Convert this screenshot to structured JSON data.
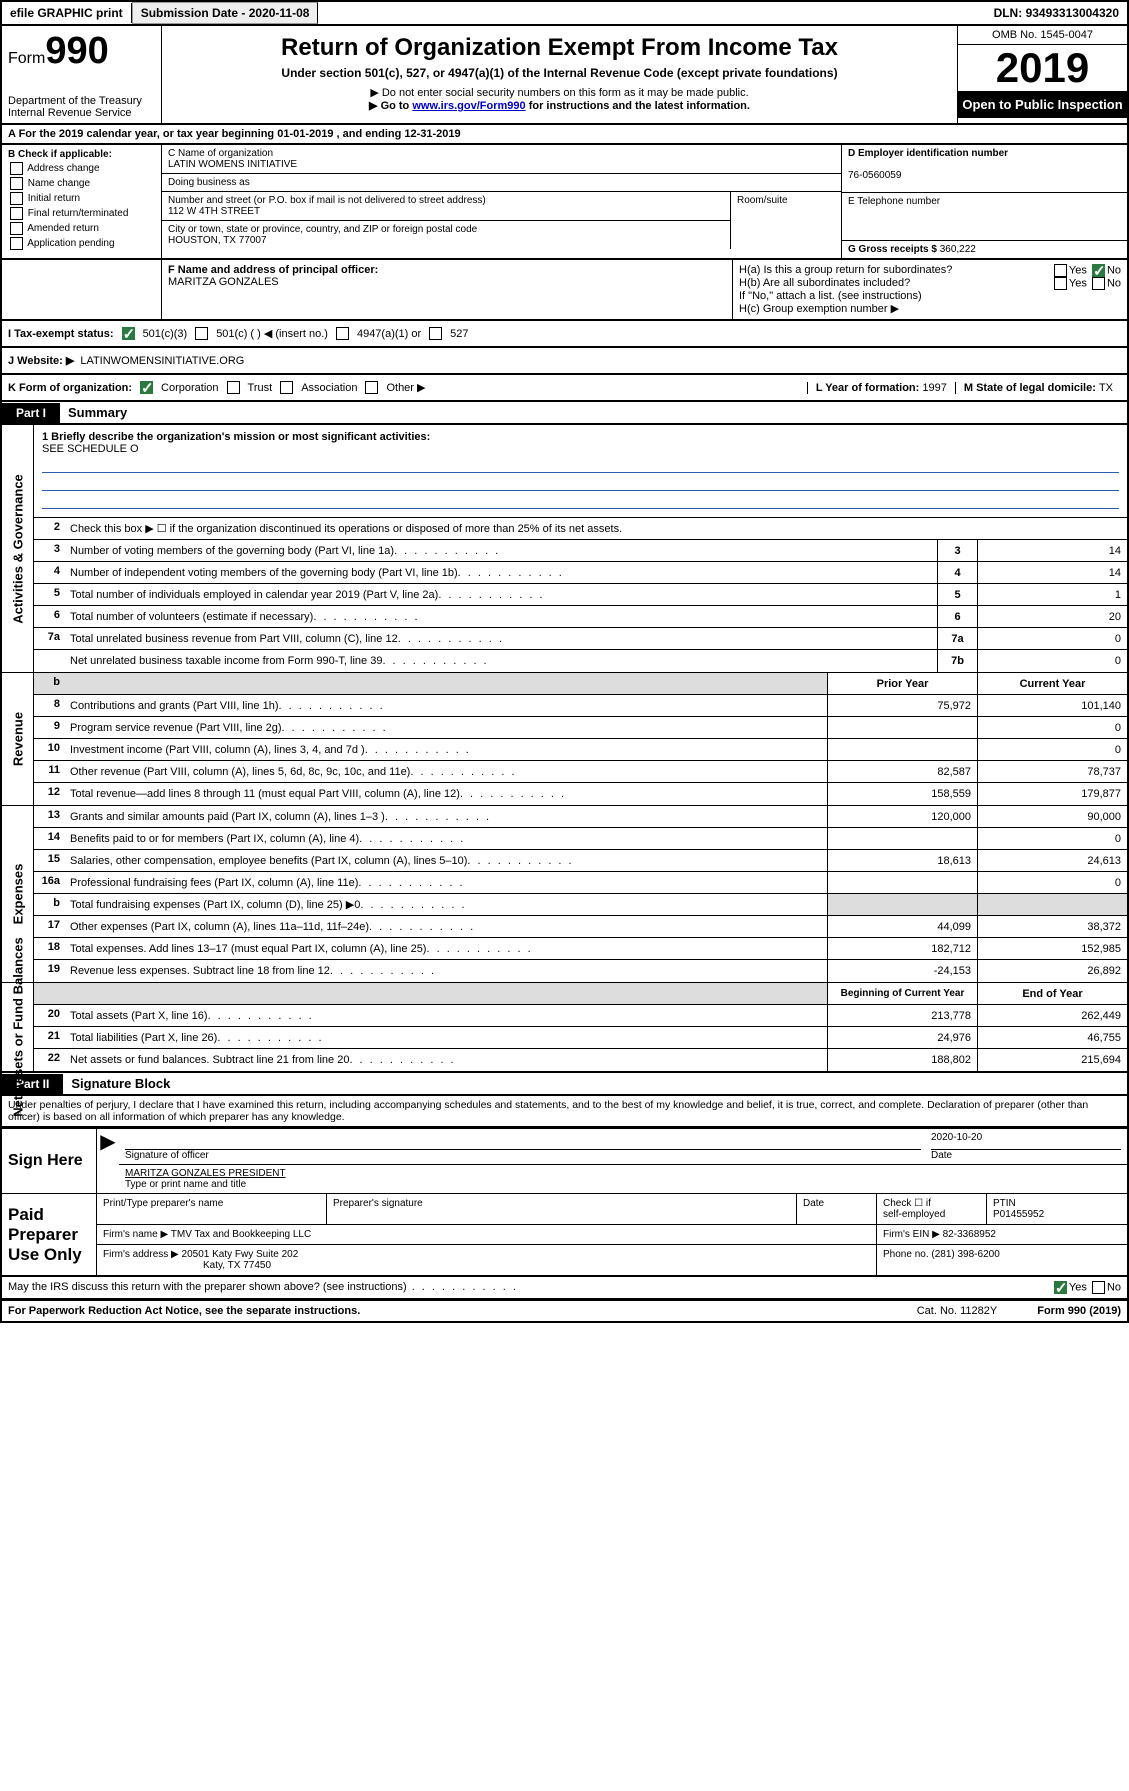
{
  "topbar": {
    "efile": "efile GRAPHIC print",
    "submission_label": "Submission Date - ",
    "submission_date": "2020-11-08",
    "dln_label": "DLN: ",
    "dln": "93493313004320"
  },
  "header": {
    "form_word": "Form",
    "form_num": "990",
    "dept1": "Department of the Treasury",
    "dept2": "Internal Revenue Service",
    "title": "Return of Organization Exempt From Income Tax",
    "sub": "Under section 501(c), 527, or 4947(a)(1) of the Internal Revenue Code (except private foundations)",
    "note1": "▶ Do not enter social security numbers on this form as it may be made public.",
    "note2a": "▶ Go to ",
    "note2_link": "www.irs.gov/Form990",
    "note2b": " for instructions and the latest information.",
    "omb": "OMB No. 1545-0047",
    "year": "2019",
    "open_public": "Open to Public Inspection"
  },
  "rowA": {
    "text": "A For the 2019 calendar year, or tax year beginning ",
    "begin": "01-01-2019",
    "mid": "  , and ending ",
    "end": "12-31-2019"
  },
  "boxB": {
    "title": "B Check if applicable:",
    "opts": [
      "Address change",
      "Name change",
      "Initial return",
      "Final return/terminated",
      "Amended return",
      "Application pending"
    ]
  },
  "boxC": {
    "label_name": "C Name of organization",
    "org_name": "LATIN WOMENS INITIATIVE",
    "dba_label": "Doing business as",
    "addr_label": "Number and street (or P.O. box if mail is not delivered to street address)",
    "room_label": "Room/suite",
    "addr": "112 W 4TH STREET",
    "city_label": "City or town, state or province, country, and ZIP or foreign postal code",
    "city": "HOUSTON, TX  77007"
  },
  "boxD": {
    "label": "D Employer identification number",
    "value": "76-0560059"
  },
  "boxE": {
    "label": "E Telephone number"
  },
  "boxG": {
    "label": "G Gross receipts $ ",
    "value": "360,222"
  },
  "boxF": {
    "label": "F  Name and address of principal officer:",
    "value": "MARITZA GONZALES"
  },
  "boxH": {
    "ha": "H(a)  Is this a group return for subordinates?",
    "hb": "H(b)  Are all subordinates included?",
    "hb_note": "If \"No,\" attach a list. (see instructions)",
    "hc": "H(c)  Group exemption number ▶",
    "yes": "Yes",
    "no": "No"
  },
  "rowI": {
    "label": "I     Tax-exempt status:",
    "o1": "501(c)(3)",
    "o2": "501(c) (   ) ◀ (insert no.)",
    "o3": "4947(a)(1) or",
    "o4": "527"
  },
  "rowJ": {
    "label": "J     Website: ▶",
    "value": " LATINWOMENSINITIATIVE.ORG"
  },
  "rowK": {
    "label": "K Form of organization:",
    "o1": "Corporation",
    "o2": "Trust",
    "o3": "Association",
    "o4": "Other ▶",
    "l_label": "L Year of formation: ",
    "l_val": "1997",
    "m_label": "M State of legal domicile: ",
    "m_val": "TX"
  },
  "part1": {
    "hdr": "Part I",
    "title": "Summary"
  },
  "summary": {
    "q1": "1   Briefly describe the organization's mission or most significant activities:",
    "q1_ans": "SEE SCHEDULE O",
    "q2": "Check this box ▶ ☐  if the organization discontinued its operations or disposed of more than 25% of its net assets.",
    "rows_gov": [
      {
        "n": "3",
        "t": "Number of voting members of the governing body (Part VI, line 1a)",
        "b": "3",
        "v": "14"
      },
      {
        "n": "4",
        "t": "Number of independent voting members of the governing body (Part VI, line 1b)",
        "b": "4",
        "v": "14"
      },
      {
        "n": "5",
        "t": "Total number of individuals employed in calendar year 2019 (Part V, line 2a)",
        "b": "5",
        "v": "1"
      },
      {
        "n": "6",
        "t": "Total number of volunteers (estimate if necessary)",
        "b": "6",
        "v": "20"
      },
      {
        "n": "7a",
        "t": "Total unrelated business revenue from Part VIII, column (C), line 12",
        "b": "7a",
        "v": "0"
      },
      {
        "n": "",
        "t": "Net unrelated business taxable income from Form 990-T, line 39",
        "b": "7b",
        "v": "0"
      }
    ],
    "col_hdr_prior": "Prior Year",
    "col_hdr_current": "Current Year",
    "rows_rev": [
      {
        "n": "8",
        "t": "Contributions and grants (Part VIII, line 1h)",
        "p": "75,972",
        "c": "101,140"
      },
      {
        "n": "9",
        "t": "Program service revenue (Part VIII, line 2g)",
        "p": "",
        "c": "0"
      },
      {
        "n": "10",
        "t": "Investment income (Part VIII, column (A), lines 3, 4, and 7d )",
        "p": "",
        "c": "0"
      },
      {
        "n": "11",
        "t": "Other revenue (Part VIII, column (A), lines 5, 6d, 8c, 9c, 10c, and 11e)",
        "p": "82,587",
        "c": "78,737"
      },
      {
        "n": "12",
        "t": "Total revenue—add lines 8 through 11 (must equal Part VIII, column (A), line 12)",
        "p": "158,559",
        "c": "179,877"
      }
    ],
    "rows_exp": [
      {
        "n": "13",
        "t": "Grants and similar amounts paid (Part IX, column (A), lines 1–3 )",
        "p": "120,000",
        "c": "90,000"
      },
      {
        "n": "14",
        "t": "Benefits paid to or for members (Part IX, column (A), line 4)",
        "p": "",
        "c": "0"
      },
      {
        "n": "15",
        "t": "Salaries, other compensation, employee benefits (Part IX, column (A), lines 5–10)",
        "p": "18,613",
        "c": "24,613"
      },
      {
        "n": "16a",
        "t": "Professional fundraising fees (Part IX, column (A), line 11e)",
        "p": "",
        "c": "0"
      },
      {
        "n": "b",
        "t": "Total fundraising expenses (Part IX, column (D), line 25) ▶0",
        "p": "shaded",
        "c": "shaded"
      },
      {
        "n": "17",
        "t": "Other expenses (Part IX, column (A), lines 11a–11d, 11f–24e)",
        "p": "44,099",
        "c": "38,372"
      },
      {
        "n": "18",
        "t": "Total expenses. Add lines 13–17 (must equal Part IX, column (A), line 25)",
        "p": "182,712",
        "c": "152,985"
      },
      {
        "n": "19",
        "t": "Revenue less expenses. Subtract line 18 from line 12",
        "p": "-24,153",
        "c": "26,892"
      }
    ],
    "col_hdr_begin": "Beginning of Current Year",
    "col_hdr_end": "End of Year",
    "rows_net": [
      {
        "n": "20",
        "t": "Total assets (Part X, line 16)",
        "p": "213,778",
        "c": "262,449"
      },
      {
        "n": "21",
        "t": "Total liabilities (Part X, line 26)",
        "p": "24,976",
        "c": "46,755"
      },
      {
        "n": "22",
        "t": "Net assets or fund balances. Subtract line 21 from line 20",
        "p": "188,802",
        "c": "215,694"
      }
    ],
    "side_gov": "Activities & Governance",
    "side_rev": "Revenue",
    "side_exp": "Expenses",
    "side_net": "Net Assets or Fund Balances"
  },
  "part2": {
    "hdr": "Part II",
    "title": "Signature Block"
  },
  "perjury": "Under penalties of perjury, I declare that I have examined this return, including accompanying schedules and statements, and to the best of my knowledge and belief, it is true, correct, and complete. Declaration of preparer (other than officer) is based on all information of which preparer has any knowledge.",
  "sign": {
    "label": "Sign Here",
    "sig_officer": "Signature of officer",
    "date_label": "Date",
    "date": "2020-10-20",
    "name": "MARITZA GONZALES  PRESIDENT",
    "name_label": "Type or print name and title"
  },
  "paid": {
    "label": "Paid Preparer Use Only",
    "h1": "Print/Type preparer's name",
    "h2": "Preparer's signature",
    "h3": "Date",
    "h4a": "Check ☐ if",
    "h4b": "self-employed",
    "h5": "PTIN",
    "ptin": "P01455952",
    "firm_label": "Firm's name    ▶ ",
    "firm": "TMV Tax and Bookkeeping LLC",
    "ein_label": "Firm's EIN ▶ ",
    "ein": "82-3368952",
    "addr_label": "Firm's address ▶ ",
    "addr1": "20501 Katy Fwy Suite 202",
    "addr2": "Katy, TX  77450",
    "phone_label": "Phone no. ",
    "phone": "(281) 398-6200"
  },
  "footer": {
    "discuss": "May the IRS discuss this return with the preparer shown above? (see instructions)",
    "yes": "Yes",
    "no": "No",
    "pra": "For Paperwork Reduction Act Notice, see the separate instructions.",
    "cat": "Cat. No. 11282Y",
    "form": "Form 990 (2019)"
  }
}
